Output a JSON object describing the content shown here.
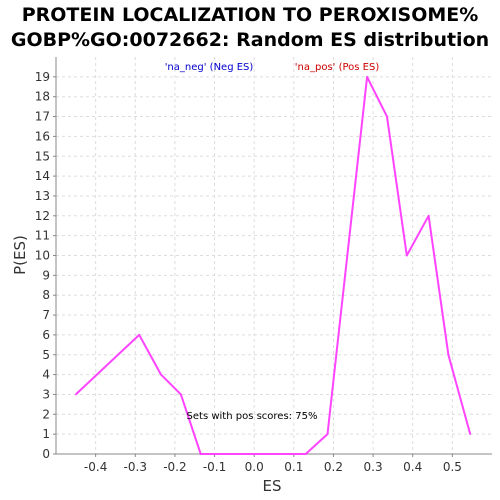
{
  "chart_data": {
    "type": "line",
    "title_line1": "PROTEIN LOCALIZATION TO PEROXISOME%",
    "title_line2": "GOBP%GO:0072662: Random ES distribution",
    "xlabel": "ES",
    "ylabel": "P(ES)",
    "xlim": [
      -0.5,
      0.6
    ],
    "ylim": [
      0,
      20
    ],
    "xticks": [
      -0.4,
      -0.3,
      -0.2,
      -0.1,
      0.0,
      0.1,
      0.2,
      0.3,
      0.4,
      0.5
    ],
    "xtick_labels": [
      "-0.4",
      "-0.3",
      "-0.2",
      "-0.1",
      "0.0",
      "0.1",
      "0.2",
      "0.3",
      "0.4",
      "0.5"
    ],
    "yticks": [
      0,
      1,
      2,
      3,
      4,
      5,
      6,
      7,
      8,
      9,
      10,
      11,
      12,
      13,
      14,
      15,
      16,
      17,
      18,
      19
    ],
    "ytick_labels": [
      "0",
      "1",
      "2",
      "3",
      "4",
      "5",
      "6",
      "7",
      "8",
      "9",
      "10",
      "11",
      "12",
      "13",
      "14",
      "15",
      "16",
      "17",
      "18",
      "19"
    ],
    "grid": true,
    "legend": {
      "placement": "top",
      "items": [
        {
          "label": "'na_neg' (Neg ES)",
          "color": "#0000cc"
        },
        {
          "label": "'na_pos' (Pos ES)",
          "color": "#cc0000"
        }
      ]
    },
    "annotation": "Sets with pos scores: 75%",
    "series": [
      {
        "color": "#ff44ff",
        "x": [
          -0.45,
          -0.29,
          -0.235,
          -0.185,
          -0.135,
          0.13,
          0.185,
          0.285,
          0.335,
          0.385,
          0.44,
          0.49,
          0.545
        ],
        "y": [
          3,
          6,
          4,
          3,
          0,
          0,
          1,
          19,
          17,
          10,
          12,
          5,
          1
        ]
      }
    ]
  }
}
